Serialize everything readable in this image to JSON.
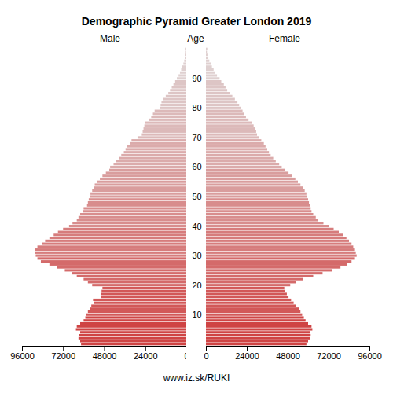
{
  "chart_data": {
    "type": "population_pyramid",
    "title": "Demographic Pyramid Greater London 2019",
    "y_label": "Age",
    "caption": "www.iz.sk/RUKI",
    "orientation": "horizontal",
    "categories": [
      0,
      1,
      2,
      3,
      4,
      5,
      6,
      7,
      8,
      9,
      10,
      11,
      12,
      13,
      14,
      15,
      16,
      17,
      18,
      19,
      20,
      21,
      22,
      23,
      24,
      25,
      26,
      27,
      28,
      29,
      30,
      31,
      32,
      33,
      34,
      35,
      36,
      37,
      38,
      39,
      40,
      41,
      42,
      43,
      44,
      45,
      46,
      47,
      48,
      49,
      50,
      51,
      52,
      53,
      54,
      55,
      56,
      57,
      58,
      59,
      60,
      61,
      62,
      63,
      64,
      65,
      66,
      67,
      68,
      69,
      70,
      71,
      72,
      73,
      74,
      75,
      76,
      77,
      78,
      79,
      80,
      81,
      82,
      83,
      84,
      85,
      86,
      87,
      88,
      89,
      90,
      91,
      92,
      93,
      94,
      95,
      96,
      97,
      98,
      99,
      100
    ],
    "series": [
      {
        "name": "Male",
        "values": [
          61500,
          62000,
          63000,
          62500,
          62000,
          64500,
          64000,
          62000,
          60000,
          59000,
          58500,
          57500,
          56500,
          55500,
          54000,
          54500,
          50000,
          50000,
          49500,
          49000,
          55000,
          57500,
          60000,
          64000,
          67000,
          71000,
          75700,
          80000,
          85000,
          87000,
          88000,
          88500,
          88500,
          87000,
          84500,
          82500,
          80000,
          77500,
          75000,
          72000,
          68500,
          66500,
          64000,
          63000,
          62000,
          60500,
          60000,
          58000,
          57500,
          57000,
          56500,
          56000,
          55000,
          54000,
          53500,
          52000,
          50500,
          49000,
          47000,
          45000,
          44500,
          42500,
          41000,
          39500,
          38000,
          36500,
          35500,
          34500,
          33000,
          32000,
          28500,
          26000,
          25500,
          25000,
          24500,
          24000,
          22000,
          20500,
          19500,
          18500,
          15600,
          15000,
          14500,
          13500,
          12000,
          10500,
          9500,
          8500,
          7500,
          6500,
          5500,
          4500,
          3700,
          3000,
          2300,
          1700,
          1200,
          800,
          500,
          300,
          400
        ]
      },
      {
        "name": "Female",
        "values": [
          59000,
          60000,
          61000,
          61500,
          61000,
          62500,
          62000,
          60000,
          58500,
          57500,
          56500,
          55500,
          54500,
          53000,
          51500,
          50000,
          48500,
          47500,
          46500,
          46000,
          49500,
          53000,
          57000,
          63000,
          68500,
          74000,
          79000,
          83000,
          85500,
          87500,
          88500,
          88000,
          87500,
          86500,
          85500,
          84000,
          82500,
          80500,
          78000,
          75000,
          72000,
          69000,
          66000,
          64500,
          63000,
          62000,
          61500,
          61000,
          60500,
          60000,
          59500,
          59000,
          58000,
          57000,
          55500,
          54000,
          52500,
          50500,
          48500,
          46500,
          44500,
          43000,
          41000,
          39500,
          38000,
          37000,
          36000,
          35000,
          34000,
          32500,
          31000,
          30000,
          29500,
          29000,
          28000,
          27000,
          25000,
          23500,
          22500,
          21500,
          20500,
          19500,
          18500,
          17000,
          15500,
          14000,
          12500,
          11500,
          10500,
          9000,
          8000,
          6500,
          5500,
          4500,
          3500,
          2800,
          2000,
          1400,
          900,
          600,
          800
        ]
      }
    ],
    "colors": [
      "#cf4444",
      "#cf4444",
      "#cf4444",
      "#cf4444",
      "#cf4444",
      "#cf4444",
      "#cf4444",
      "#cf4444",
      "#cf4444",
      "#cf4444",
      "#d25858",
      "#d25858",
      "#d25858",
      "#d25858",
      "#d25858",
      "#d25858",
      "#d25858",
      "#d25858",
      "#d25858",
      "#d25858",
      "#d46a6a",
      "#d46a6a",
      "#d46a6a",
      "#d46a6a",
      "#d46a6a",
      "#d46a6a",
      "#d46a6a",
      "#d46a6a",
      "#d46a6a",
      "#d46a6a",
      "#d67c7c",
      "#d67c7c",
      "#d67c7c",
      "#d67c7c",
      "#d67c7c",
      "#d67c7c",
      "#d67c7c",
      "#d67c7c",
      "#d67c7c",
      "#d67c7c",
      "#d88d8d",
      "#d88d8d",
      "#d88d8d",
      "#d88d8d",
      "#d88d8d",
      "#d88d8d",
      "#d88d8d",
      "#d88d8d",
      "#d88d8d",
      "#d88d8d",
      "#d99d9d",
      "#d99d9d",
      "#d99d9d",
      "#d99d9d",
      "#d99d9d",
      "#d99d9d",
      "#d99d9d",
      "#d99d9d",
      "#d99d9d",
      "#d99d9d",
      "#dbabab",
      "#dbabab",
      "#dbabab",
      "#dbabab",
      "#dbabab",
      "#dbabab",
      "#dbabab",
      "#dbabab",
      "#dbabab",
      "#dbabab",
      "#dcb9b9",
      "#dcb9b9",
      "#dcb9b9",
      "#dcb9b9",
      "#dcb9b9",
      "#dcb9b9",
      "#dcb9b9",
      "#dcb9b9",
      "#dcb9b9",
      "#dcb9b9",
      "#ddc5c5",
      "#ddc5c5",
      "#ddc5c5",
      "#ddc5c5",
      "#ddc5c5",
      "#ddc5c5",
      "#ddc5c5",
      "#ddc5c5",
      "#ddc5c5",
      "#ddc5c5",
      "#dfd0d0",
      "#dfd0d0",
      "#dfd0d0",
      "#dfd0d0",
      "#dfd0d0",
      "#dfd0d0",
      "#dfd0d0",
      "#dfd0d0",
      "#dfd0d0",
      "#dfd0d0",
      "#dfd0d0"
    ],
    "xlim": [
      0,
      96000
    ],
    "xticks": [
      0,
      24000,
      48000,
      72000,
      96000
    ],
    "yticks": [
      10,
      20,
      30,
      40,
      50,
      60,
      70,
      80,
      90
    ]
  }
}
